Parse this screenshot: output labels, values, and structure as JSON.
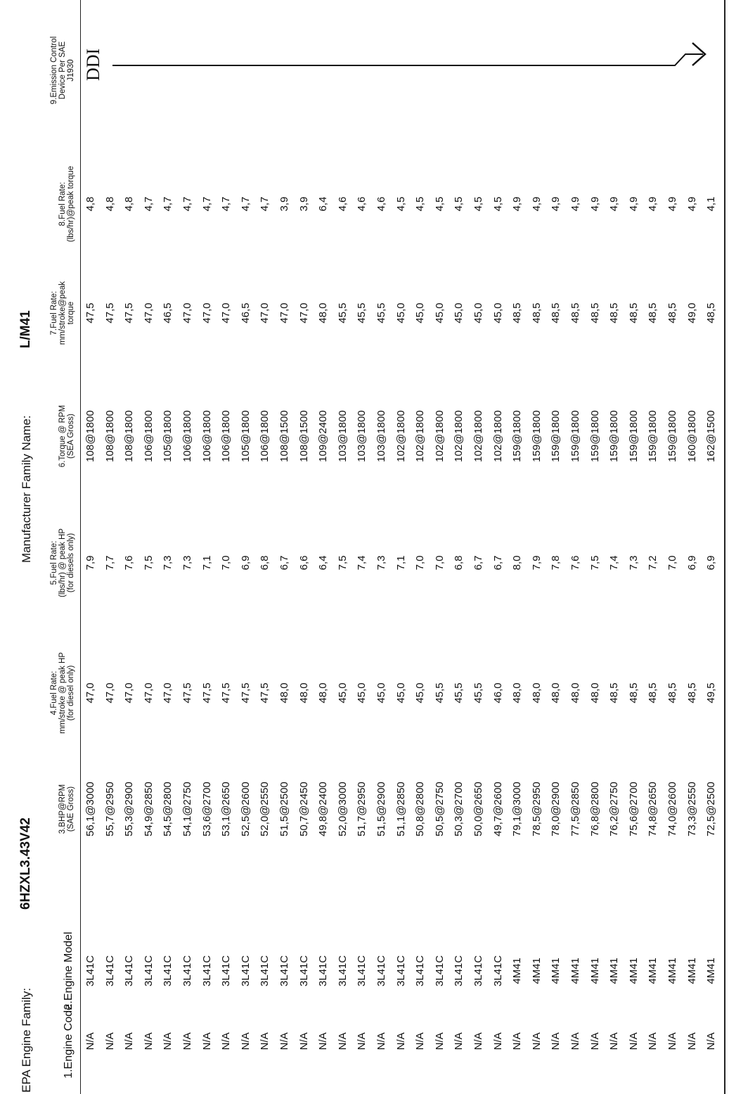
{
  "header": {
    "epa_label": "EPA Engine Family:",
    "epa_value": "6HZXL3.43V42",
    "mfr_label": "Manufacturer Family Name:",
    "mfr_value": "L/M41"
  },
  "table": {
    "columns": [
      "1.Engine Code",
      "2.Engine Model",
      "3.BHP@RPM\n(SAE Gross)",
      "4.Fuel Rate:\nmm/stroke @ peak HP\n(for diesel only)",
      "5.Fuel Rate:\n(lbs/hr) @ peak HP\n(for diesels only)",
      "6.Torque @ RPM\n(SEA Gross)",
      "7.Fuel Rate:\nmm/stroke@peak\ntorque",
      "8.Fuel Rate:\n(lbs/hr)@peak torque",
      "9.Emission Control\nDevice Per SAE J1930"
    ],
    "rows": [
      [
        "N/A",
        "3L41C",
        "56,1@3000",
        "47,0",
        "7,9",
        "108@1800",
        "47,5",
        "4,8"
      ],
      [
        "N/A",
        "3L41C",
        "55,7@2950",
        "47,0",
        "7,7",
        "108@1800",
        "47,5",
        "4,8"
      ],
      [
        "N/A",
        "3L41C",
        "55,3@2900",
        "47,0",
        "7,6",
        "108@1800",
        "47,5",
        "4,8"
      ],
      [
        "N/A",
        "3L41C",
        "54,9@2850",
        "47,0",
        "7,5",
        "106@1800",
        "47,0",
        "4,7"
      ],
      [
        "N/A",
        "3L41C",
        "54,5@2800",
        "47,0",
        "7,3",
        "105@1800",
        "46,5",
        "4,7"
      ],
      [
        "N/A",
        "3L41C",
        "54,1@2750",
        "47,5",
        "7,3",
        "106@1800",
        "47,0",
        "4,7"
      ],
      [
        "N/A",
        "3L41C",
        "53,6@2700",
        "47,5",
        "7,1",
        "106@1800",
        "47,0",
        "4,7"
      ],
      [
        "N/A",
        "3L41C",
        "53,1@2650",
        "47,5",
        "7,0",
        "106@1800",
        "47,0",
        "4,7"
      ],
      [
        "N/A",
        "3L41C",
        "52,5@2600",
        "47,5",
        "6,9",
        "105@1800",
        "46,5",
        "4,7"
      ],
      [
        "N/A",
        "3L41C",
        "52,0@2550",
        "47,5",
        "6,8",
        "106@1800",
        "47,0",
        "4,7"
      ],
      [
        "N/A",
        "3L41C",
        "51,5@2500",
        "48,0",
        "6,7",
        "108@1500",
        "47,0",
        "3,9"
      ],
      [
        "N/A",
        "3L41C",
        "50,7@2450",
        "48,0",
        "6,6",
        "108@1500",
        "47,0",
        "3,9"
      ],
      [
        "N/A",
        "3L41C",
        "49,8@2400",
        "48,0",
        "6,4",
        "109@2400",
        "48,0",
        "6,4"
      ],
      [
        "N/A",
        "3L41C",
        "52,0@3000",
        "45,0",
        "7,5",
        "103@1800",
        "45,5",
        "4,6"
      ],
      [
        "N/A",
        "3L41C",
        "51,7@2950",
        "45,0",
        "7,4",
        "103@1800",
        "45,5",
        "4,6"
      ],
      [
        "N/A",
        "3L41C",
        "51,5@2900",
        "45,0",
        "7,3",
        "103@1800",
        "45,5",
        "4,6"
      ],
      [
        "N/A",
        "3L41C",
        "51,1@2850",
        "45,0",
        "7,1",
        "102@1800",
        "45,0",
        "4,5"
      ],
      [
        "N/A",
        "3L41C",
        "50,8@2800",
        "45,0",
        "7,0",
        "102@1800",
        "45,0",
        "4,5"
      ],
      [
        "N/A",
        "3L41C",
        "50,5@2750",
        "45,5",
        "7,0",
        "102@1800",
        "45,0",
        "4,5"
      ],
      [
        "N/A",
        "3L41C",
        "50,3@2700",
        "45,5",
        "6,8",
        "102@1800",
        "45,0",
        "4,5"
      ],
      [
        "N/A",
        "3L41C",
        "50,0@2650",
        "45,5",
        "6,7",
        "102@1800",
        "45,0",
        "4,5"
      ],
      [
        "N/A",
        "3L41C",
        "49,7@2600",
        "46,0",
        "6,7",
        "102@1800",
        "45,0",
        "4,5"
      ],
      [
        "N/A",
        "4M41",
        "79,1@3000",
        "48,0",
        "8,0",
        "159@1800",
        "48,5",
        "4,9"
      ],
      [
        "N/A",
        "4M41",
        "78,5@2950",
        "48,0",
        "7,9",
        "159@1800",
        "48,5",
        "4,9"
      ],
      [
        "N/A",
        "4M41",
        "78,0@2900",
        "48,0",
        "7,8",
        "159@1800",
        "48,5",
        "4,9"
      ],
      [
        "N/A",
        "4M41",
        "77,5@2850",
        "48,0",
        "7,6",
        "159@1800",
        "48,5",
        "4,9"
      ],
      [
        "N/A",
        "4M41",
        "76,8@2800",
        "48,0",
        "7,5",
        "159@1800",
        "48,5",
        "4,9"
      ],
      [
        "N/A",
        "4M41",
        "76,2@2750",
        "48,5",
        "7,4",
        "159@1800",
        "48,5",
        "4,9"
      ],
      [
        "N/A",
        "4M41",
        "75,6@2700",
        "48,5",
        "7,3",
        "159@1800",
        "48,5",
        "4,9"
      ],
      [
        "N/A",
        "4M41",
        "74,8@2650",
        "48,5",
        "7,2",
        "159@1800",
        "48,5",
        "4,9"
      ],
      [
        "N/A",
        "4M41",
        "74,0@2600",
        "48,5",
        "7,0",
        "159@1800",
        "48,5",
        "4,9"
      ],
      [
        "N/A",
        "4M41",
        "73,3@2550",
        "48,5",
        "6,9",
        "160@1800",
        "49,0",
        "4,9"
      ],
      [
        "N/A",
        "4M41",
        "72,5@2500",
        "49,5",
        "6,9",
        "162@1500",
        "48,5",
        "4,1"
      ]
    ]
  },
  "annotation": "DDI"
}
